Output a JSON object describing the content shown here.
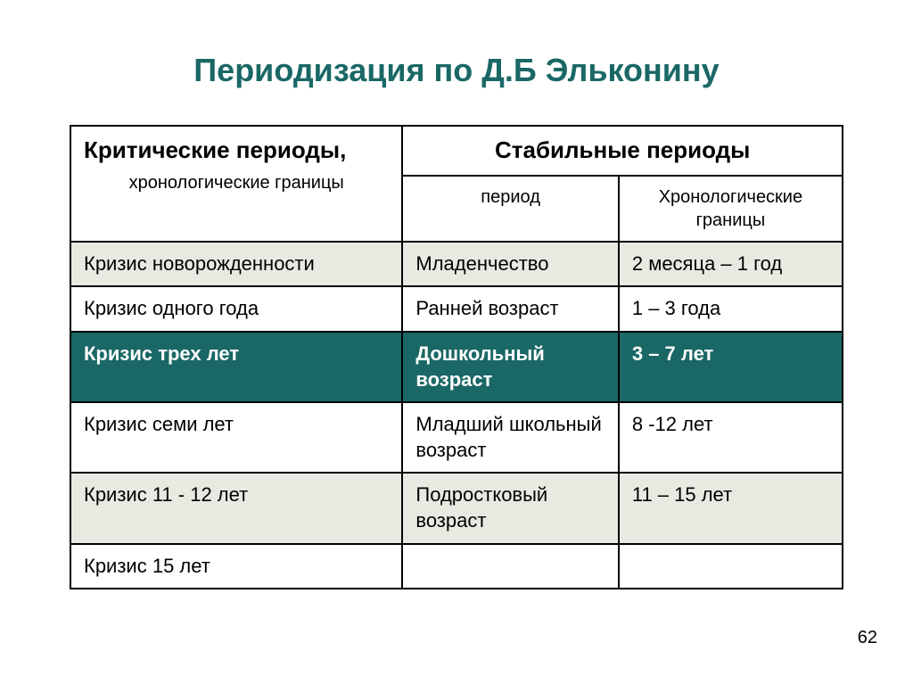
{
  "title": "Периодизация по Д.Б Эльконину",
  "colors": {
    "title_text": "#1a6866",
    "highlight_bg": "#1a6866",
    "highlight_text": "#ffffff",
    "alt_row_bg": "#e9e9e2",
    "border": "#000000",
    "text": "#000000"
  },
  "columns": {
    "critical_main": "Критические периоды,",
    "critical_sub": "хронологические границы",
    "stable_main": "Стабильные периоды",
    "stable_sub_period": "период",
    "stable_sub_boundaries": "Хронологические границы"
  },
  "col_widths": {
    "critical": "43%",
    "period": "28%",
    "boundaries": "29%"
  },
  "rows": [
    {
      "critical": "Кризис новорожденности",
      "period": "Младенчество",
      "boundaries": "2 месяца – 1 год",
      "highlight": false,
      "alt": true
    },
    {
      "critical": "Кризис одного года",
      "period": "Ранней возраст",
      "boundaries": "1 – 3 года",
      "highlight": false,
      "alt": false
    },
    {
      "critical": "Кризис трех лет",
      "period": "Дошкольный возраст",
      "boundaries": "3 – 7 лет",
      "highlight": true,
      "alt": false
    },
    {
      "critical": "Кризис семи лет",
      "period": "Младший школьный возраст",
      "boundaries": "8 -12 лет",
      "highlight": false,
      "alt": false
    },
    {
      "critical": "Кризис 11 - 12 лет",
      "period": "Подростковый возраст",
      "boundaries": "11 – 15 лет",
      "highlight": false,
      "alt": true
    },
    {
      "critical": "Кризис 15 лет",
      "period": "",
      "boundaries": "",
      "highlight": false,
      "alt": false
    }
  ],
  "page_number": "62"
}
